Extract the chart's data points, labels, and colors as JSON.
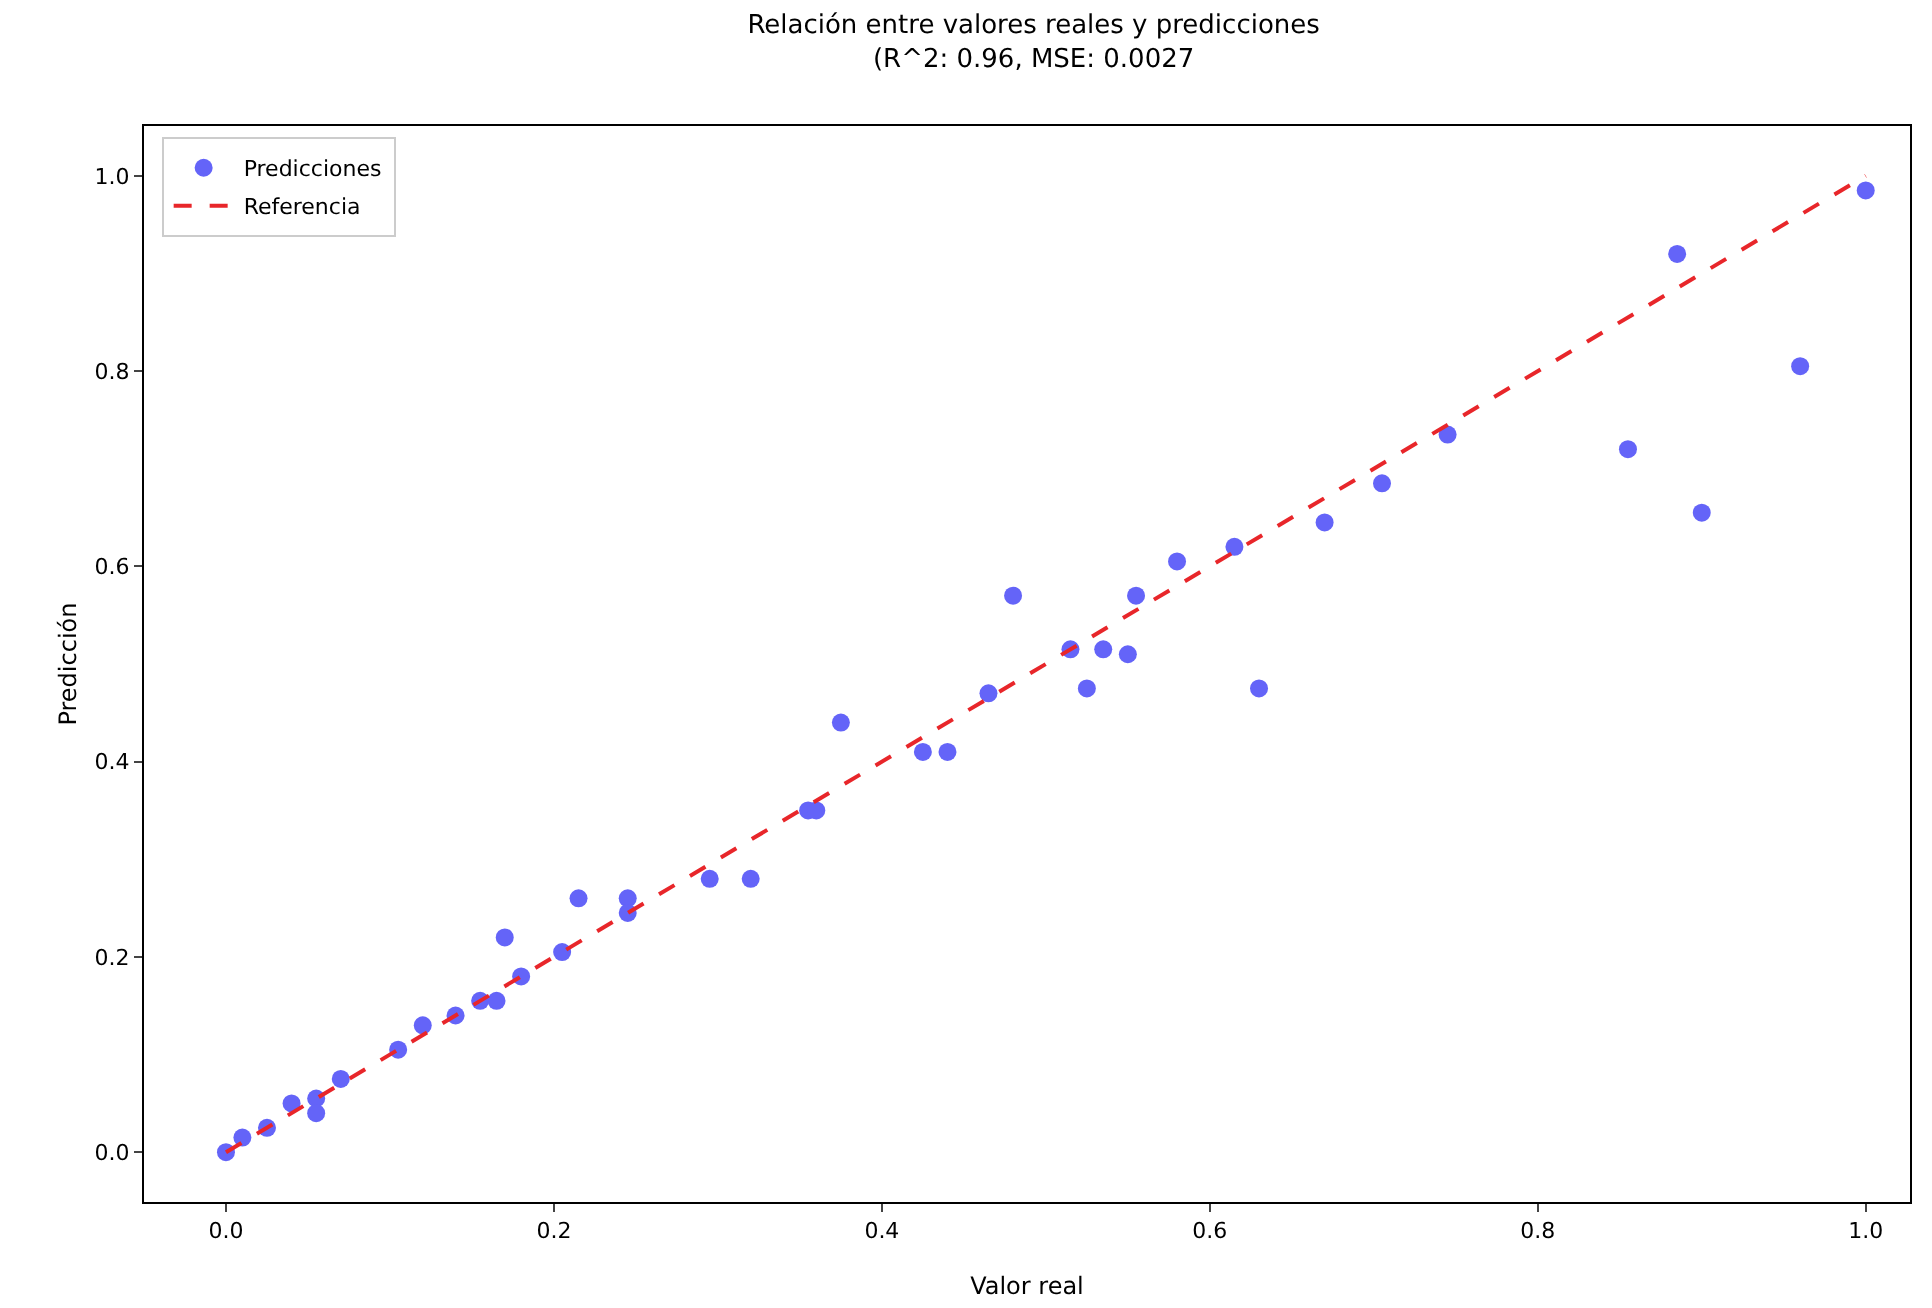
{
  "chart_data": {
    "type": "scatter",
    "title": "Relación entre valores reales y predicciones\n(R^2: 0.96, MSE: 0.0027",
    "xlabel": "Valor real",
    "ylabel": "Predicción",
    "xlim": [
      -0.05,
      1.027
    ],
    "ylim": [
      -0.051,
      1.051
    ],
    "xticks": [
      {
        "value": 0,
        "label": "0.0"
      },
      0.2,
      0.4,
      0.6,
      0.8,
      {
        "value": 1,
        "label": "1.0"
      }
    ],
    "yticks": [
      {
        "value": 0,
        "label": "0.0"
      },
      0.2,
      0.4,
      0.6,
      0.8,
      {
        "value": 1,
        "label": "1.0"
      }
    ],
    "grid": false,
    "legend": "top left",
    "series": [
      {
        "name": "Predicciones",
        "type": "scatter",
        "marker": "circle",
        "color": "#6464f8",
        "x": [
          0.0,
          0.01,
          0.025,
          0.04,
          0.055,
          0.055,
          0.07,
          0.105,
          0.12,
          0.14,
          0.155,
          0.165,
          0.17,
          0.18,
          0.205,
          0.215,
          0.245,
          0.245,
          0.295,
          0.32,
          0.355,
          0.36,
          0.375,
          0.425,
          0.44,
          0.465,
          0.48,
          0.515,
          0.525,
          0.535,
          0.55,
          0.555,
          0.58,
          0.615,
          0.63,
          0.67,
          0.705,
          0.745,
          0.855,
          0.885,
          0.9,
          0.96,
          1.0
        ],
        "values": [
          0.0,
          0.015,
          0.025,
          0.05,
          0.055,
          0.04,
          0.075,
          0.105,
          0.13,
          0.14,
          0.155,
          0.155,
          0.22,
          0.18,
          0.205,
          0.26,
          0.26,
          0.245,
          0.28,
          0.28,
          0.35,
          0.35,
          0.44,
          0.41,
          0.41,
          0.47,
          0.57,
          0.515,
          0.475,
          0.515,
          0.51,
          0.57,
          0.605,
          0.62,
          0.475,
          0.645,
          0.685,
          0.735,
          0.72,
          0.92,
          0.655,
          0.805,
          0.985
        ]
      },
      {
        "name": "Referencia",
        "type": "line",
        "marker": "none",
        "line_style": "dashed",
        "color": "#e8262a",
        "x": [
          0,
          1
        ],
        "values": [
          0,
          1
        ]
      }
    ]
  }
}
